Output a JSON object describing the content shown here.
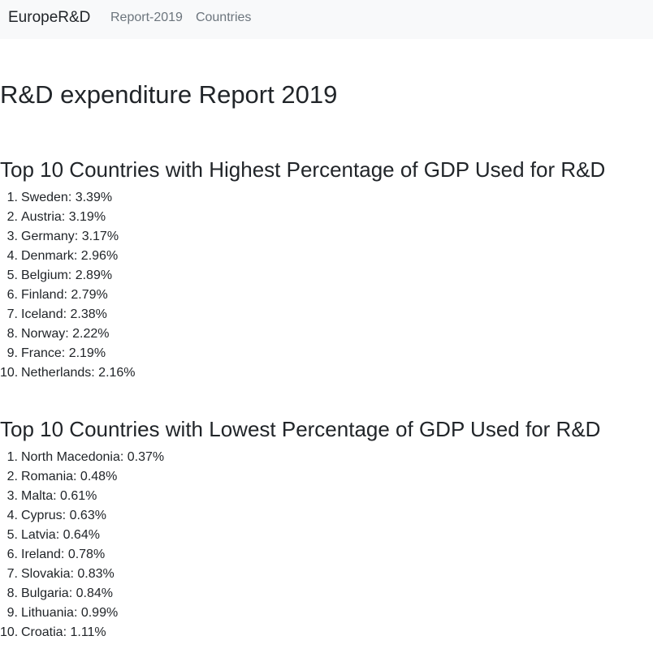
{
  "navbar": {
    "brand": "EuropeR&D",
    "links": [
      "Report-2019",
      "Countries"
    ]
  },
  "page": {
    "title": "R&D expenditure Report 2019"
  },
  "sections": [
    {
      "heading": "Top 10 Countries with Highest Percentage of GDP Used for R&D",
      "items": [
        {
          "rank": "1.",
          "text": "Sweden: 3.39%"
        },
        {
          "rank": "2.",
          "text": "Austria: 3.19%"
        },
        {
          "rank": "3.",
          "text": "Germany: 3.17%"
        },
        {
          "rank": "4.",
          "text": "Denmark: 2.96%"
        },
        {
          "rank": "5.",
          "text": "Belgium: 2.89%"
        },
        {
          "rank": "6.",
          "text": "Finland: 2.79%"
        },
        {
          "rank": "7.",
          "text": "Iceland: 2.38%"
        },
        {
          "rank": "8.",
          "text": "Norway: 2.22%"
        },
        {
          "rank": "9.",
          "text": "France: 2.19%"
        },
        {
          "rank": "10.",
          "text": "Netherlands: 2.16%"
        }
      ]
    },
    {
      "heading": "Top 10 Countries with Lowest Percentage of GDP Used for R&D",
      "items": [
        {
          "rank": "1.",
          "text": "North Macedonia: 0.37%"
        },
        {
          "rank": "2.",
          "text": "Romania: 0.48%"
        },
        {
          "rank": "3.",
          "text": "Malta: 0.61%"
        },
        {
          "rank": "4.",
          "text": "Cyprus: 0.63%"
        },
        {
          "rank": "5.",
          "text": "Latvia: 0.64%"
        },
        {
          "rank": "6.",
          "text": "Ireland: 0.78%"
        },
        {
          "rank": "7.",
          "text": "Slovakia: 0.83%"
        },
        {
          "rank": "8.",
          "text": "Bulgaria: 0.84%"
        },
        {
          "rank": "9.",
          "text": "Lithuania: 0.99%"
        },
        {
          "rank": "10.",
          "text": "Croatia: 1.11%"
        }
      ]
    }
  ]
}
